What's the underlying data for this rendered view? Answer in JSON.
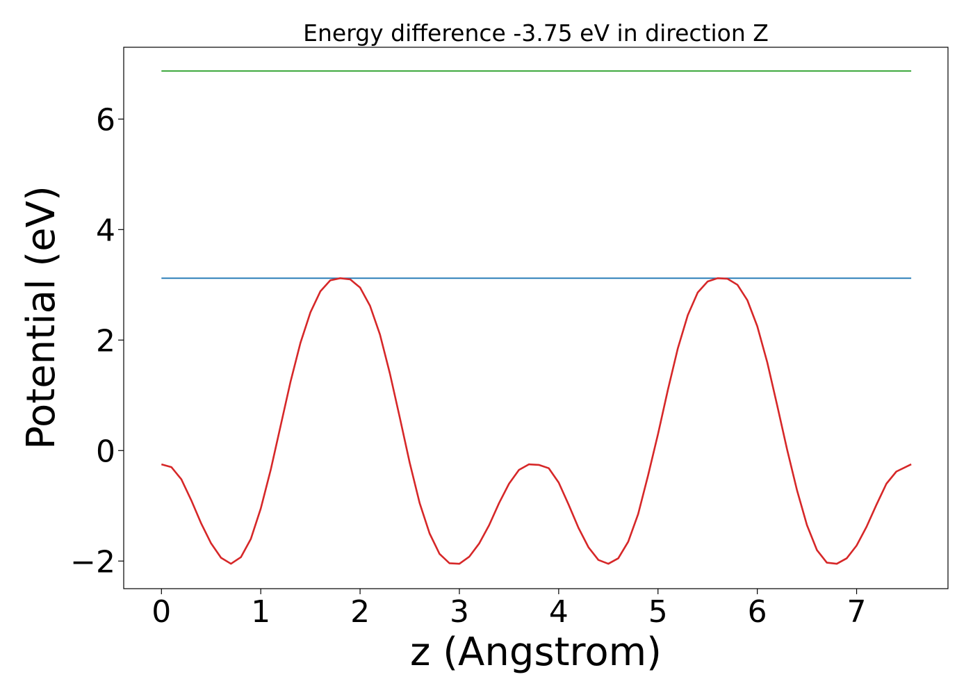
{
  "chart_data": {
    "type": "line",
    "title": "Energy difference -3.75 eV in direction Z",
    "xlabel": "z (Angstrom)",
    "ylabel": "Potential (eV)",
    "xlim": [
      -0.38,
      7.92
    ],
    "ylim": [
      -2.5,
      7.3
    ],
    "xticks": [
      0,
      1,
      2,
      3,
      4,
      5,
      6,
      7
    ],
    "yticks": [
      -2,
      0,
      2,
      4,
      6
    ],
    "ytick_labels": [
      "−2",
      "0",
      "2",
      "4",
      "6"
    ],
    "grid": false,
    "legend": "none",
    "series": [
      {
        "color": "#2ca02c",
        "x": [
          0,
          7.55
        ],
        "y": [
          6.87,
          6.87
        ]
      },
      {
        "color": "#1f77b4",
        "x": [
          0,
          7.55
        ],
        "y": [
          3.12,
          3.12
        ]
      },
      {
        "color": "#d62728",
        "x": [
          0,
          0.1,
          0.2,
          0.3,
          0.4,
          0.5,
          0.6,
          0.7,
          0.8,
          0.9,
          1.0,
          1.1,
          1.2,
          1.3,
          1.4,
          1.5,
          1.6,
          1.7,
          1.8,
          1.9,
          2.0,
          2.1,
          2.2,
          2.3,
          2.4,
          2.5,
          2.6,
          2.7,
          2.8,
          2.9,
          3.0,
          3.1,
          3.2,
          3.3,
          3.4,
          3.5,
          3.6,
          3.7,
          3.8,
          3.9,
          4.0,
          4.1,
          4.2,
          4.3,
          4.4,
          4.5,
          4.6,
          4.7,
          4.8,
          4.9,
          5.0,
          5.1,
          5.2,
          5.3,
          5.4,
          5.5,
          5.6,
          5.7,
          5.8,
          5.9,
          6.0,
          6.1,
          6.2,
          6.3,
          6.4,
          6.5,
          6.6,
          6.7,
          6.8,
          6.9,
          7.0,
          7.1,
          7.2,
          7.3,
          7.4,
          7.55
        ],
        "y": [
          -0.25,
          -0.3,
          -0.52,
          -0.9,
          -1.32,
          -1.68,
          -1.94,
          -2.05,
          -1.93,
          -1.6,
          -1.05,
          -0.35,
          0.45,
          1.25,
          1.95,
          2.5,
          2.88,
          3.08,
          3.12,
          3.1,
          2.95,
          2.62,
          2.1,
          1.4,
          0.6,
          -0.22,
          -0.95,
          -1.5,
          -1.87,
          -2.04,
          -2.05,
          -1.92,
          -1.68,
          -1.35,
          -0.95,
          -0.6,
          -0.35,
          -0.25,
          -0.26,
          -0.32,
          -0.58,
          -0.98,
          -1.4,
          -1.75,
          -1.98,
          -2.05,
          -1.95,
          -1.65,
          -1.15,
          -0.45,
          0.3,
          1.1,
          1.85,
          2.45,
          2.86,
          3.06,
          3.12,
          3.11,
          3.0,
          2.72,
          2.25,
          1.6,
          0.82,
          0.02,
          -0.72,
          -1.35,
          -1.8,
          -2.03,
          -2.05,
          -1.95,
          -1.72,
          -1.38,
          -0.98,
          -0.6,
          -0.38,
          -0.25
        ]
      }
    ]
  }
}
